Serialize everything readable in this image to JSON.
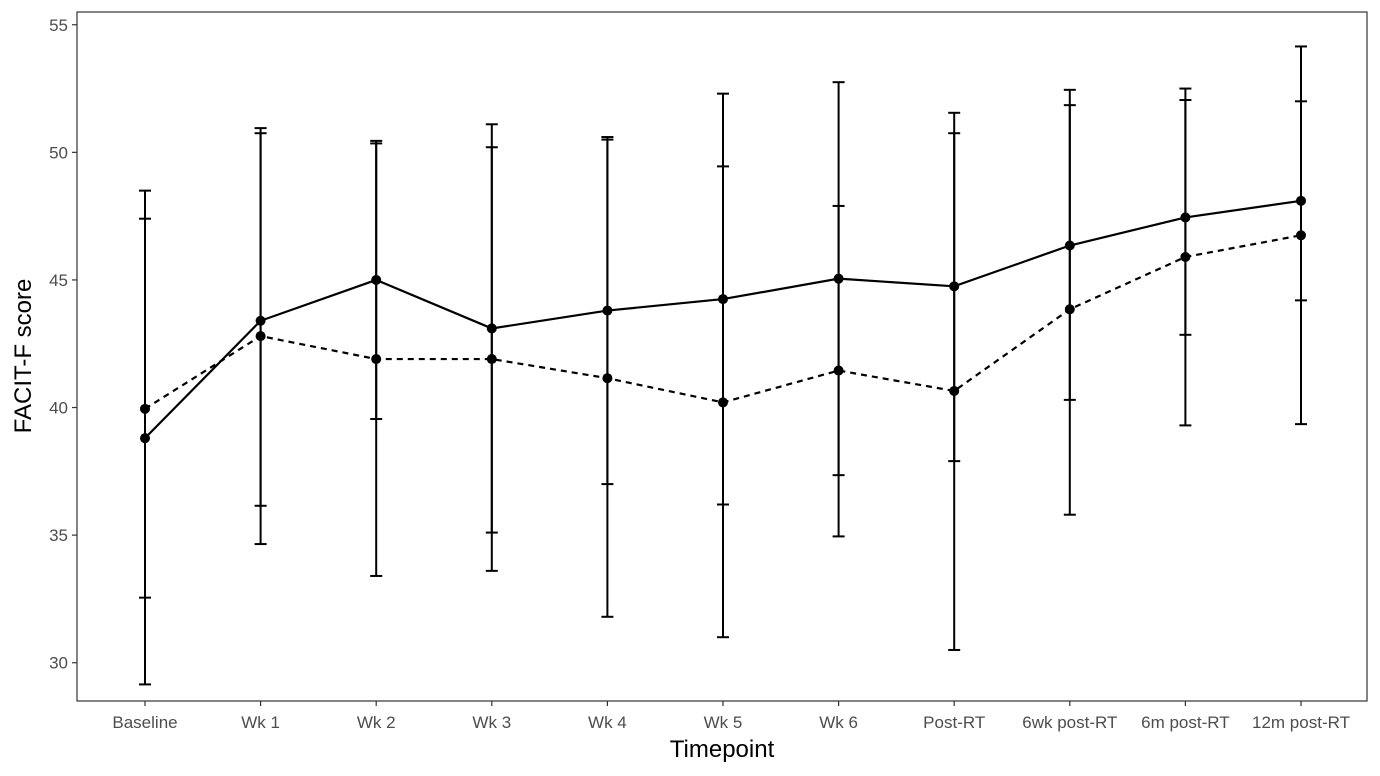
{
  "chart_data": {
    "type": "line",
    "xlabel": "Timepoint",
    "ylabel": "FACIT-F score",
    "ylim": [
      28.5,
      55.5
    ],
    "yticks": [
      30,
      35,
      40,
      45,
      50,
      55
    ],
    "grid": false,
    "legend": "none",
    "categories": [
      "Baseline",
      "Wk 1",
      "Wk 2",
      "Wk 3",
      "Wk 4",
      "Wk 5",
      "Wk 6",
      "Post-RT",
      "6wk post-RT",
      "6m post-RT",
      "12m post-RT"
    ],
    "series": [
      {
        "line_style": "solid",
        "values": [
          38.8,
          43.4,
          45.0,
          43.1,
          43.8,
          44.25,
          45.05,
          44.75,
          46.35,
          47.45,
          48.1
        ],
        "error_low": [
          29.15,
          36.15,
          39.55,
          35.1,
          37.0,
          36.2,
          37.35,
          37.9,
          40.3,
          42.85,
          44.2
        ],
        "error_high": [
          48.5,
          50.75,
          50.45,
          51.1,
          50.6,
          52.3,
          52.75,
          51.55,
          52.45,
          52.05,
          52.0
        ]
      },
      {
        "line_style": "dashed",
        "values": [
          39.95,
          42.8,
          41.9,
          41.9,
          41.15,
          40.2,
          41.45,
          40.65,
          43.85,
          45.9,
          46.75
        ],
        "error_low": [
          32.55,
          34.65,
          33.4,
          33.6,
          31.8,
          31.0,
          34.95,
          30.5,
          35.8,
          39.3,
          39.35
        ],
        "error_high": [
          47.4,
          50.95,
          50.35,
          50.2,
          50.5,
          49.45,
          47.9,
          50.75,
          51.85,
          52.5,
          54.15
        ]
      }
    ]
  }
}
